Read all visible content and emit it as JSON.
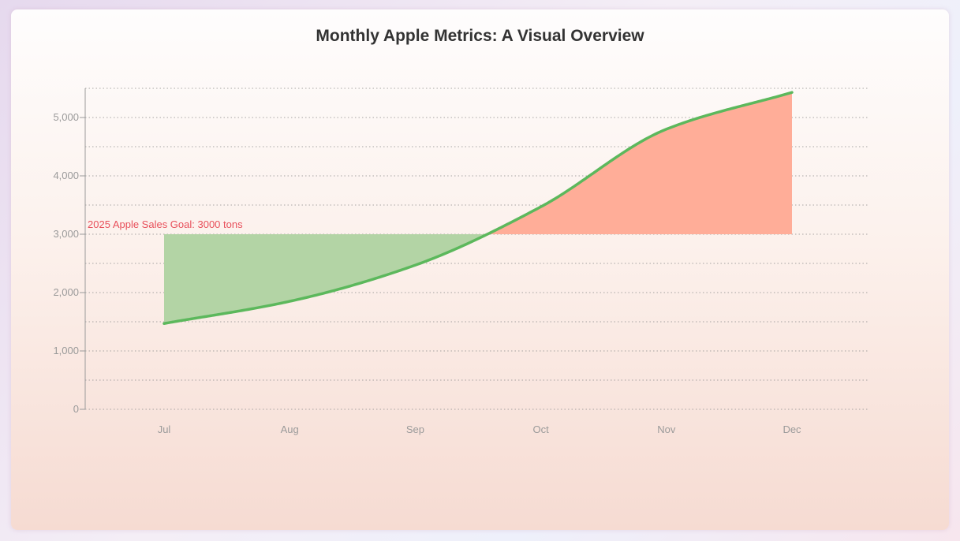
{
  "chart_data": {
    "type": "line",
    "title": "Monthly Apple Metrics: A Visual Overview",
    "categories": [
      "Jul",
      "Aug",
      "Sep",
      "Oct",
      "Nov",
      "Dec"
    ],
    "series": [
      {
        "values": [
          1470,
          1850,
          2470,
          3470,
          4800,
          5430
        ],
        "color": "#5cb85c"
      }
    ],
    "goal": {
      "value": 3000,
      "label": "2025 Apple Sales Goal: 3000 tons"
    },
    "ylim": [
      0,
      5500
    ],
    "yticks": [
      0,
      1000,
      2000,
      3000,
      4000,
      5000
    ],
    "ytick_labels": [
      "0",
      "1,000",
      "2,000",
      "3,000",
      "4,000",
      "5,000"
    ],
    "grid": true,
    "colors": {
      "line": "#5cb85c",
      "below_goal_fill": "#b3d4a5",
      "above_goal_fill": "#ffad98",
      "goal_label": "#e8505b"
    }
  }
}
